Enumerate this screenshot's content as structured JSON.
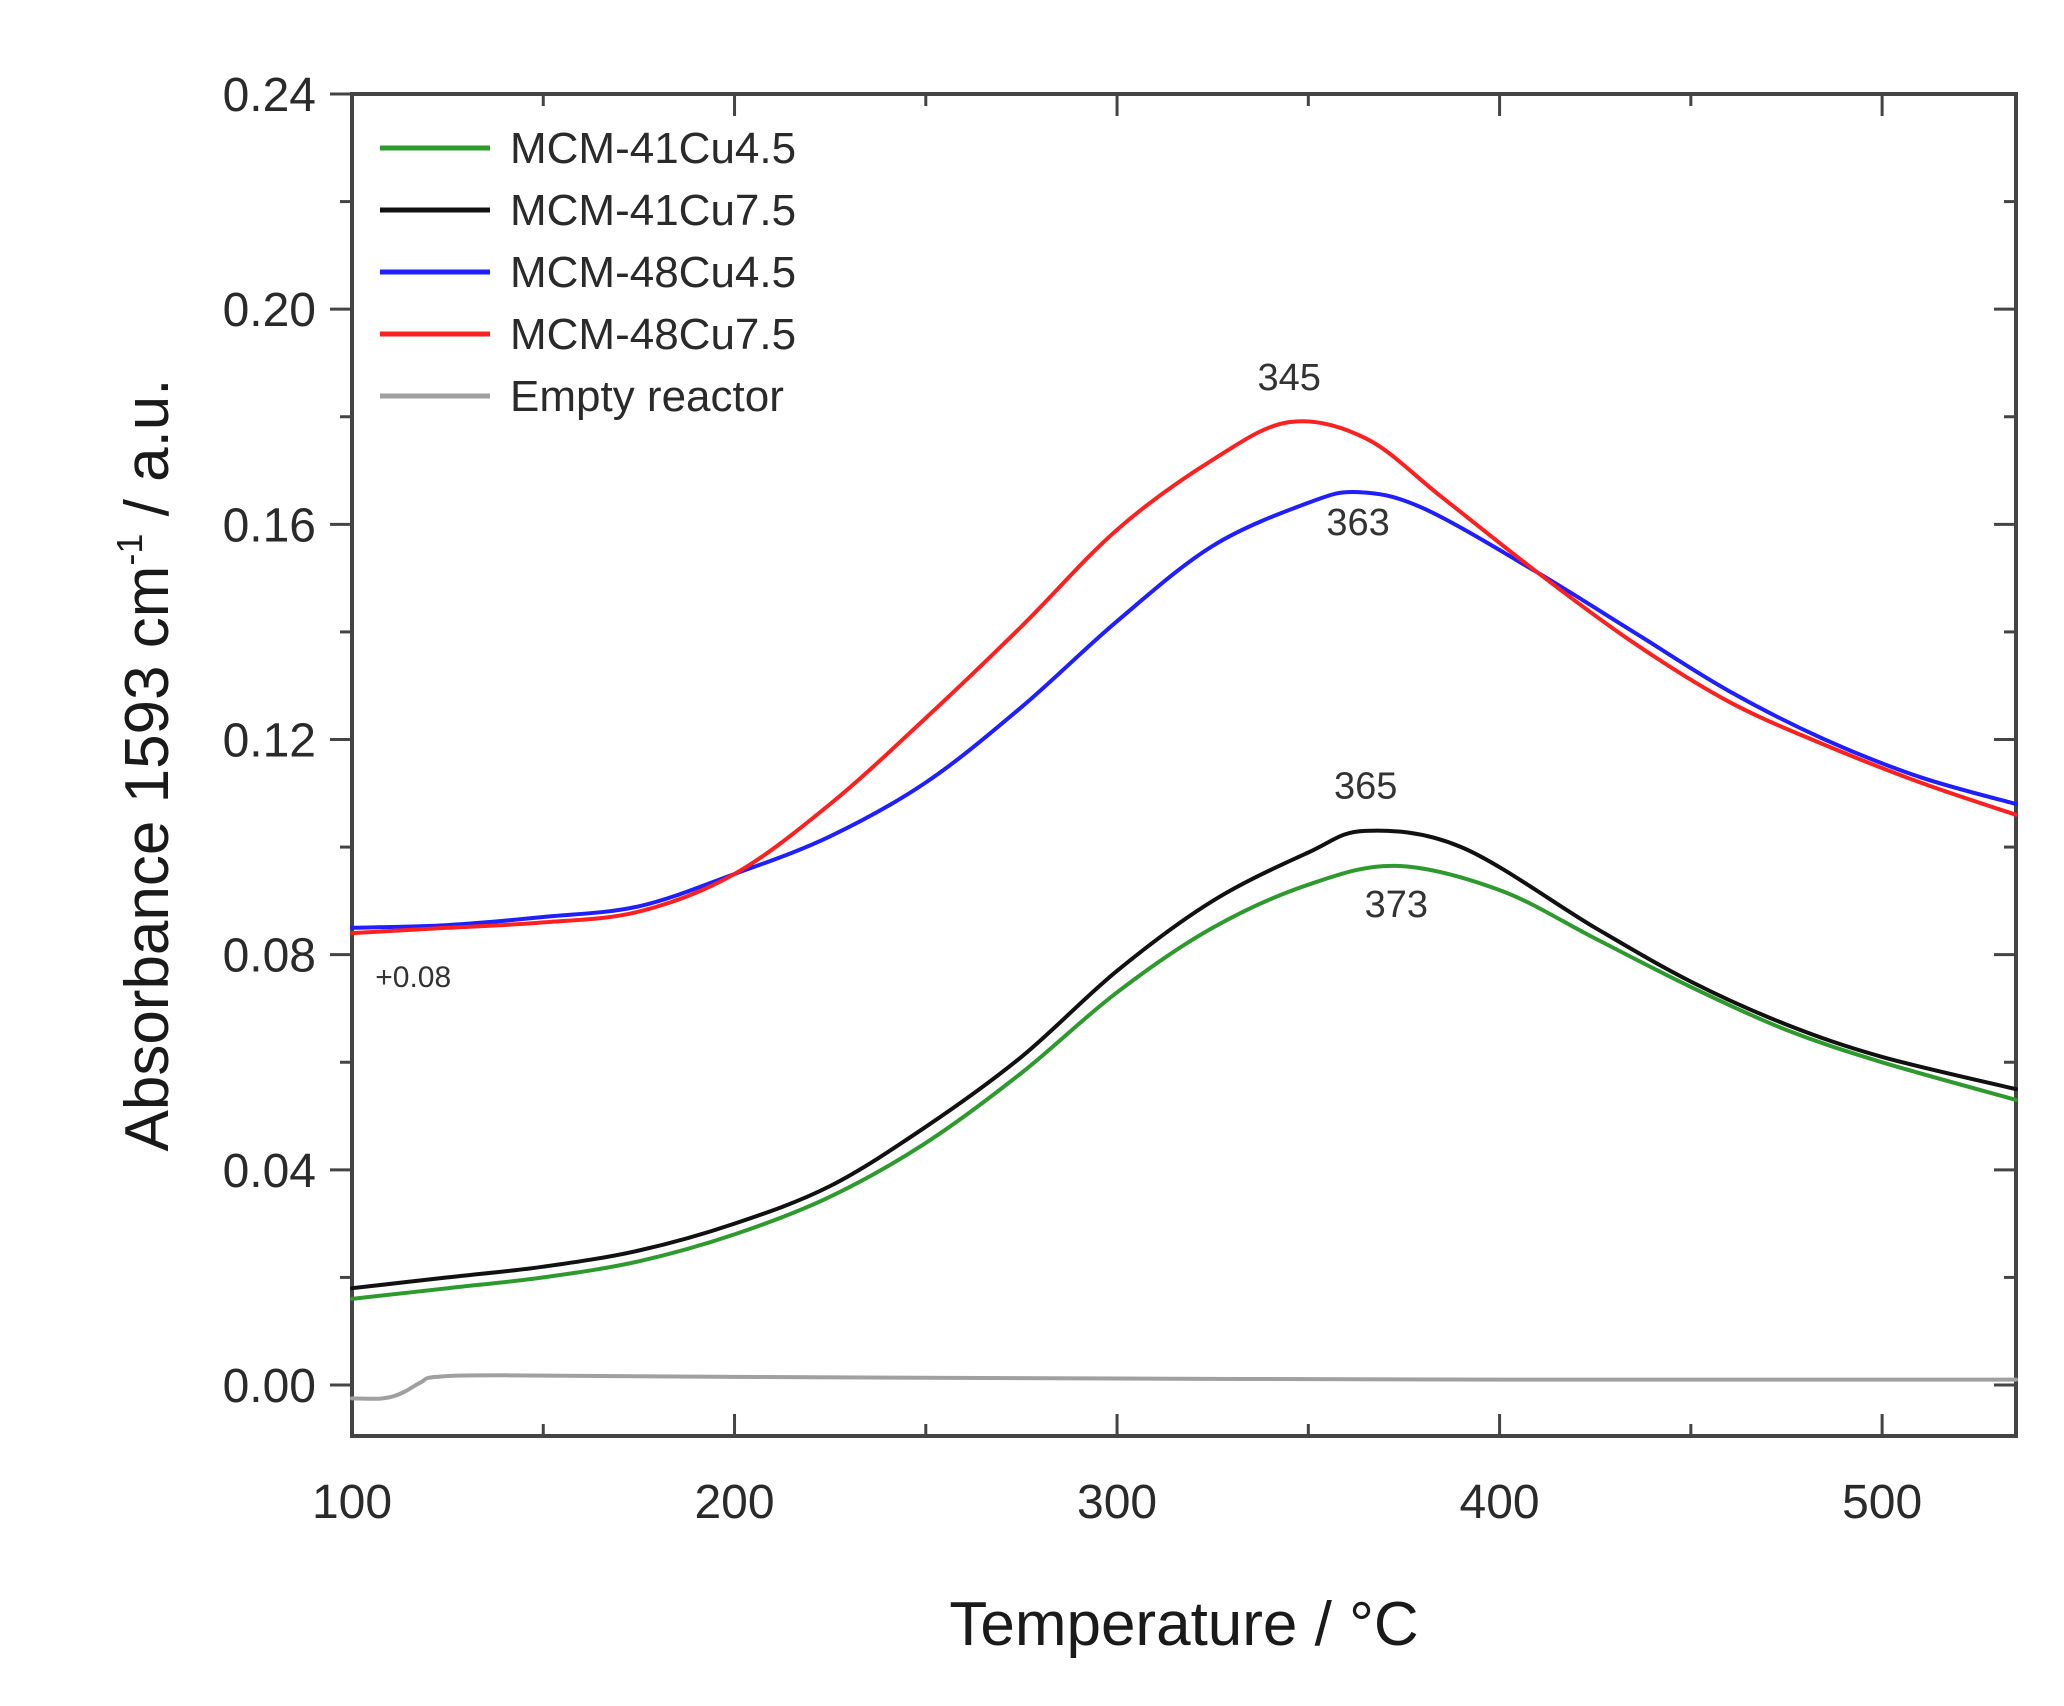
{
  "chart_data": {
    "type": "line",
    "title": "",
    "xlabel": "Temperature / °C",
    "ylabel_main": "Absorbance 1593 cm",
    "ylabel_sup": "-1",
    "ylabel_tail": " / a.u.",
    "xlim": [
      100,
      535
    ],
    "ylim": [
      -0.01,
      0.24
    ],
    "xticks": [
      100,
      200,
      300,
      400,
      500
    ],
    "xtick_labels": [
      "100",
      "200",
      "300",
      "400",
      "500"
    ],
    "yticks": [
      0.0,
      0.04,
      0.08,
      0.12,
      0.16,
      0.2,
      0.24
    ],
    "ytick_labels": [
      "0.00",
      "0.04",
      "0.08",
      "0.12",
      "0.16",
      "0.20",
      "0.24"
    ],
    "grid": false,
    "legend_position": "top-left",
    "series": [
      {
        "name": "MCM-41Cu4.5",
        "color": "#2e9a2e",
        "x": [
          100,
          125,
          150,
          175,
          200,
          225,
          250,
          275,
          300,
          325,
          350,
          373,
          400,
          425,
          450,
          475,
          500,
          535
        ],
        "y": [
          0.016,
          0.018,
          0.02,
          0.023,
          0.028,
          0.035,
          0.045,
          0.058,
          0.073,
          0.085,
          0.093,
          0.0965,
          0.092,
          0.083,
          0.074,
          0.066,
          0.06,
          0.053
        ]
      },
      {
        "name": "MCM-41Cu7.5",
        "color": "#111111",
        "x": [
          100,
          125,
          150,
          175,
          200,
          225,
          250,
          275,
          300,
          325,
          350,
          365,
          390,
          425,
          450,
          475,
          500,
          535
        ],
        "y": [
          0.018,
          0.02,
          0.022,
          0.025,
          0.03,
          0.037,
          0.048,
          0.061,
          0.077,
          0.09,
          0.099,
          0.103,
          0.1,
          0.085,
          0.075,
          0.067,
          0.061,
          0.055
        ]
      },
      {
        "name": "MCM-48Cu4.5",
        "color": "#1f1fff",
        "x": [
          100,
          125,
          150,
          175,
          200,
          225,
          250,
          275,
          300,
          325,
          350,
          363,
          380,
          410,
          435,
          460,
          485,
          510,
          535
        ],
        "y": [
          0.085,
          0.0855,
          0.087,
          0.089,
          0.095,
          0.102,
          0.112,
          0.126,
          0.142,
          0.156,
          0.164,
          0.166,
          0.163,
          0.151,
          0.14,
          0.129,
          0.12,
          0.113,
          0.108
        ]
      },
      {
        "name": "MCM-48Cu7.5",
        "color": "#ff2020",
        "x": [
          100,
          125,
          150,
          175,
          200,
          225,
          250,
          275,
          300,
          325,
          345,
          365,
          385,
          410,
          435,
          460,
          485,
          510,
          535
        ],
        "y": [
          0.084,
          0.085,
          0.086,
          0.088,
          0.095,
          0.108,
          0.124,
          0.141,
          0.159,
          0.172,
          0.179,
          0.176,
          0.165,
          0.151,
          0.138,
          0.127,
          0.119,
          0.112,
          0.106
        ]
      },
      {
        "name": "Empty reactor",
        "color": "#a0a0a0",
        "x": [
          100,
          108,
          113,
          118,
          122,
          140,
          200,
          300,
          400,
          535
        ],
        "y": [
          -0.0025,
          -0.0025,
          -0.0015,
          0.0005,
          0.0015,
          0.0018,
          0.0015,
          0.0012,
          0.001,
          0.001
        ]
      }
    ],
    "annotations": [
      {
        "text": "345",
        "x": 345,
        "y": 0.185
      },
      {
        "text": "363",
        "x": 363,
        "y": 0.158
      },
      {
        "text": "365",
        "x": 365,
        "y": 0.109
      },
      {
        "text": "373",
        "x": 373,
        "y": 0.087
      }
    ],
    "offset_label": {
      "text": "+0.08",
      "x": 116,
      "y": 0.074
    }
  }
}
